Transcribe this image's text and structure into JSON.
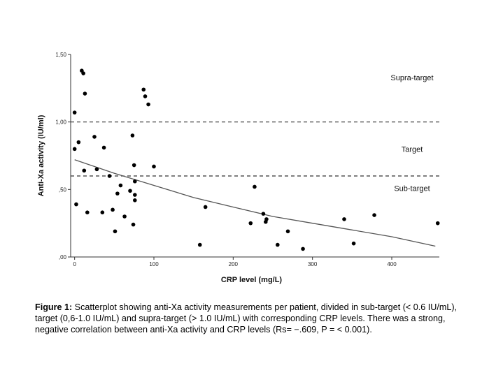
{
  "chart_data": {
    "type": "scatter",
    "xlabel": "CRP level (mg/L)",
    "ylabel": "Anti-Xa activity (IU/ml)",
    "xlim": [
      -5,
      460
    ],
    "ylim": [
      0,
      1.5
    ],
    "xticks": [
      0,
      100,
      200,
      300,
      400
    ],
    "xtick_labels": [
      "0",
      "100",
      "200",
      "300",
      "400"
    ],
    "yticks": [
      0,
      0.5,
      1.0,
      1.5
    ],
    "ytick_labels": [
      ",00",
      ",50",
      "1,00",
      "1,50"
    ],
    "grid": false,
    "reference_lines": [
      {
        "axis": "y",
        "value": 1.0,
        "style": "dashed"
      },
      {
        "axis": "y",
        "value": 0.6,
        "style": "dashed"
      }
    ],
    "zone_labels": [
      {
        "label": "Supra-target",
        "y": 1.33
      },
      {
        "label": "Target",
        "y": 0.8
      },
      {
        "label": "Sub-target",
        "y": 0.51
      }
    ],
    "points": [
      {
        "x": 0,
        "y": 1.07
      },
      {
        "x": 0,
        "y": 0.8
      },
      {
        "x": 2,
        "y": 0.39
      },
      {
        "x": 5,
        "y": 0.85
      },
      {
        "x": 9,
        "y": 1.38
      },
      {
        "x": 11,
        "y": 1.36
      },
      {
        "x": 12,
        "y": 0.64
      },
      {
        "x": 13,
        "y": 1.21
      },
      {
        "x": 16,
        "y": 0.33
      },
      {
        "x": 25,
        "y": 0.89
      },
      {
        "x": 28,
        "y": 0.65
      },
      {
        "x": 35,
        "y": 0.33
      },
      {
        "x": 37,
        "y": 0.81
      },
      {
        "x": 44,
        "y": 0.6
      },
      {
        "x": 48,
        "y": 0.35
      },
      {
        "x": 51,
        "y": 0.19
      },
      {
        "x": 54,
        "y": 0.47
      },
      {
        "x": 58,
        "y": 0.53
      },
      {
        "x": 63,
        "y": 0.3
      },
      {
        "x": 70,
        "y": 0.49
      },
      {
        "x": 73,
        "y": 0.9
      },
      {
        "x": 74,
        "y": 0.24
      },
      {
        "x": 75,
        "y": 0.68
      },
      {
        "x": 76,
        "y": 0.56
      },
      {
        "x": 76,
        "y": 0.46
      },
      {
        "x": 76,
        "y": 0.42
      },
      {
        "x": 87,
        "y": 1.24
      },
      {
        "x": 89,
        "y": 1.19
      },
      {
        "x": 93,
        "y": 1.13
      },
      {
        "x": 100,
        "y": 0.67
      },
      {
        "x": 158,
        "y": 0.09
      },
      {
        "x": 165,
        "y": 0.37
      },
      {
        "x": 222,
        "y": 0.25
      },
      {
        "x": 227,
        "y": 0.52
      },
      {
        "x": 238,
        "y": 0.32
      },
      {
        "x": 241,
        "y": 0.26
      },
      {
        "x": 242,
        "y": 0.28
      },
      {
        "x": 256,
        "y": 0.09
      },
      {
        "x": 269,
        "y": 0.19
      },
      {
        "x": 288,
        "y": 0.06
      },
      {
        "x": 340,
        "y": 0.28
      },
      {
        "x": 352,
        "y": 0.1
      },
      {
        "x": 378,
        "y": 0.31
      },
      {
        "x": 458,
        "y": 0.25
      }
    ],
    "fit_line": [
      {
        "x": 0,
        "y": 0.72
      },
      {
        "x": 50,
        "y": 0.62
      },
      {
        "x": 100,
        "y": 0.53
      },
      {
        "x": 150,
        "y": 0.44
      },
      {
        "x": 200,
        "y": 0.37
      },
      {
        "x": 250,
        "y": 0.3
      },
      {
        "x": 300,
        "y": 0.25
      },
      {
        "x": 350,
        "y": 0.2
      },
      {
        "x": 400,
        "y": 0.15
      },
      {
        "x": 455,
        "y": 0.08
      }
    ]
  },
  "caption": {
    "label": "Figure 1:",
    "text": " Scatterplot showing anti-Xa activity measurements per patient, divided in sub-target (< 0.6 IU/mL), target (0,6-1.0 IU/mL) and supra-target (> 1.0 IU/mL) with corresponding CRP levels. There was a strong, negative correlation between anti-Xa activity and CRP levels (Rs= −.609, P = < 0.001)."
  }
}
